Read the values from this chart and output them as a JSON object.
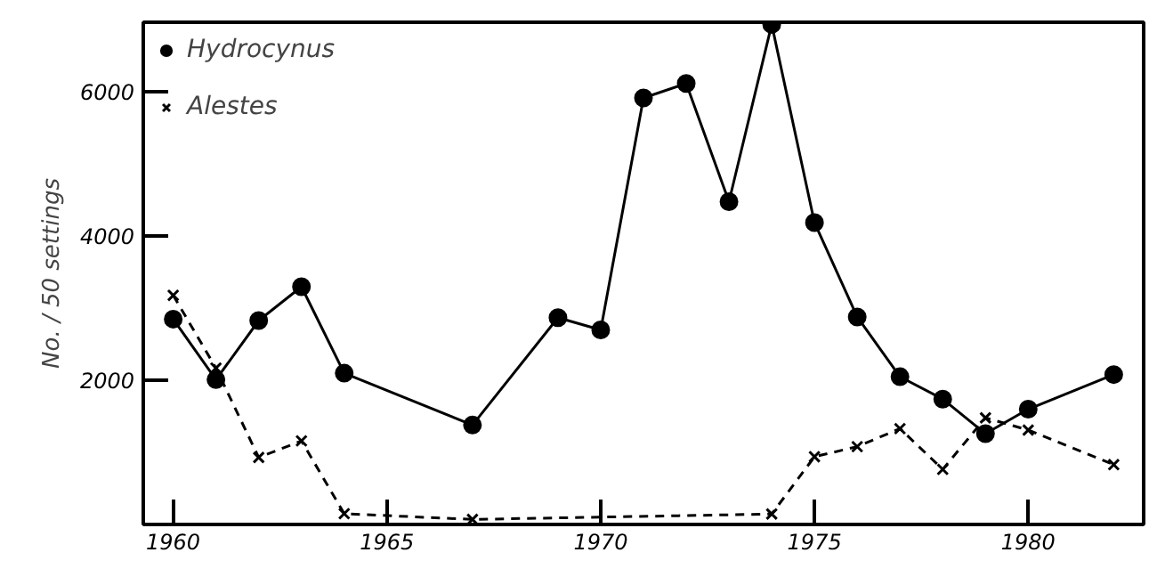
{
  "chart_data": {
    "type": "line",
    "ylabel": "No. / 50 settings",
    "xlim": [
      1959.3,
      1982.7
    ],
    "ylim": [
      0,
      6970
    ],
    "xticks": [
      1960,
      1965,
      1970,
      1975,
      1980
    ],
    "yticks": [
      2000,
      4000,
      6000
    ],
    "grid": false,
    "legend": "top left",
    "series": [
      {
        "name": "Hydrocynus",
        "color": "#000000",
        "marker": "circle",
        "line_style": "solid",
        "x": [
          1960,
          1961,
          1962,
          1963,
          1964,
          1967,
          1969,
          1970,
          1971,
          1972,
          1973,
          1974,
          1975,
          1976,
          1977,
          1978,
          1979,
          1980,
          1982
        ],
        "values": [
          2850,
          2010,
          2830,
          3300,
          2100,
          1380,
          2870,
          2700,
          5920,
          6120,
          4480,
          6940,
          4190,
          2880,
          2050,
          1740,
          1260,
          1600,
          2080
        ]
      },
      {
        "name": "Alestes",
        "color": "#000000",
        "marker": "cross",
        "line_style": "dashed",
        "x": [
          1960,
          1961,
          1962,
          1963,
          1964,
          1967,
          1974,
          1975,
          1976,
          1977,
          1978,
          1979,
          1980,
          1982
        ],
        "values": [
          3180,
          2170,
          930,
          1160,
          150,
          70,
          145,
          940,
          1080,
          1330,
          765,
          1480,
          1310,
          830
        ]
      }
    ]
  }
}
